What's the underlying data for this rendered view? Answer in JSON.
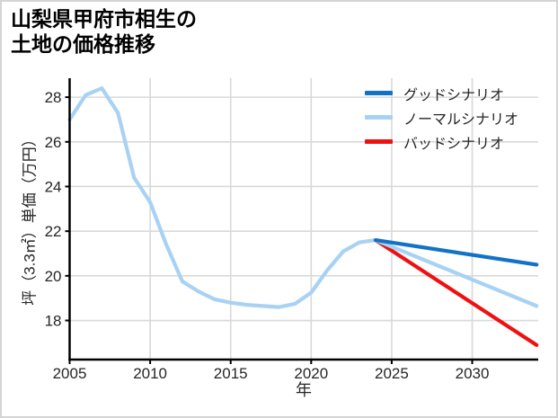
{
  "title": {
    "line1": "山梨県甲府市相生の",
    "line2": "土地の価格推移"
  },
  "axes": {
    "xlabel": "年",
    "ylabel": "坪（3.3㎡）単価（万円）"
  },
  "legend": {
    "items": [
      {
        "label": "グッドシナリオ",
        "color": "#1272c6"
      },
      {
        "label": "ノーマルシナリオ",
        "color": "#a8d2f4"
      },
      {
        "label": "バッドシナリオ",
        "color": "#ee1111"
      }
    ]
  },
  "colors": {
    "background": "#ffffff",
    "frame_border": "#d4d4d4",
    "grid": "#d9d9d9",
    "axis": "#000000",
    "tick_text": "#262626",
    "good": "#1272c6",
    "normal": "#a8d2f4",
    "bad": "#ee1111"
  },
  "chart_data": {
    "type": "line",
    "title": "山梨県甲府市相生の土地の価格推移",
    "xlabel": "年",
    "ylabel": "坪（3.3㎡）単価（万円）",
    "xlim": [
      2005,
      2034.1
    ],
    "ylim": [
      16.25,
      28.85
    ],
    "x_ticks": [
      2005,
      2010,
      2015,
      2020,
      2025,
      2030
    ],
    "y_ticks": [
      18,
      20,
      22,
      24,
      26,
      28
    ],
    "grid": true,
    "legend_position": "upper right",
    "series": [
      {
        "name": "history",
        "in_legend": false,
        "color": "#a8d2f4",
        "x": [
          2005,
          2006,
          2007,
          2008,
          2009,
          2010,
          2011,
          2012,
          2013,
          2014,
          2015,
          2016,
          2017,
          2018,
          2019,
          2020,
          2021,
          2022,
          2023,
          2024
        ],
        "y": [
          27.0,
          28.1,
          28.4,
          27.3,
          24.4,
          23.3,
          21.4,
          19.75,
          19.3,
          18.95,
          18.8,
          18.7,
          18.65,
          18.6,
          18.75,
          19.25,
          20.25,
          21.1,
          21.5,
          21.6
        ]
      },
      {
        "name": "バッドシナリオ",
        "in_legend": true,
        "color": "#ee1111",
        "x": [
          2024,
          2034
        ],
        "y": [
          21.6,
          16.9
        ]
      },
      {
        "name": "ノーマルシナリオ",
        "in_legend": true,
        "color": "#a8d2f4",
        "x": [
          2024,
          2034
        ],
        "y": [
          21.6,
          18.65
        ]
      },
      {
        "name": "グッドシナリオ",
        "in_legend": true,
        "color": "#1272c6",
        "x": [
          2024,
          2034
        ],
        "y": [
          21.6,
          20.5
        ]
      }
    ]
  }
}
